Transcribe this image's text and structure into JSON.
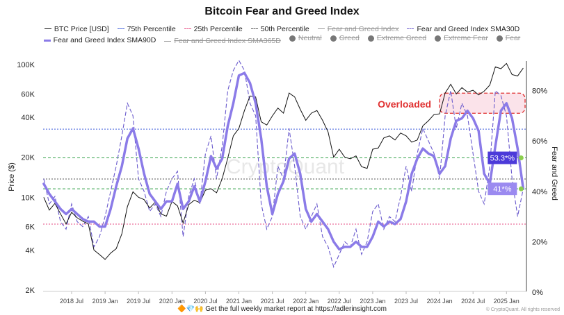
{
  "chart_data": {
    "type": "line",
    "title": "Bitcoin Fear and Greed Index",
    "ylabel_left": "Price ($)",
    "ylabel_right": "Fear and Greed",
    "y_left_scale": "log",
    "y_left_ticks": [
      "2K",
      "4K",
      "6K",
      "10K",
      "20K",
      "40K",
      "60K",
      "100K"
    ],
    "y_left_tick_values": [
      2000,
      4000,
      6000,
      10000,
      20000,
      40000,
      60000,
      100000
    ],
    "y_left_range": [
      2000,
      100000
    ],
    "y_right_ticks": [
      "0%",
      "20%",
      "40%",
      "60%",
      "80%"
    ],
    "y_right_tick_values": [
      0,
      20,
      40,
      60,
      80
    ],
    "y_right_range": [
      0,
      100
    ],
    "x_ticks": [
      "2018 Jul",
      "2019 Jan",
      "2019 Jul",
      "2020 Jan",
      "2020 Jul",
      "2021 Jan",
      "2021 Jul",
      "2022 Jan",
      "2022 Jul",
      "2023 Jan",
      "2023 Jul",
      "2024 Jan",
      "2024 Jul",
      "2025 Jan"
    ],
    "x_start": "2018-02",
    "x_end": "2025-04",
    "grid": false,
    "legend_placement": "top",
    "legend": [
      {
        "label": "BTC Price [USD]",
        "style": "solid",
        "color": "#111111",
        "enabled": true
      },
      {
        "label": "75th Percentile",
        "style": "dashed",
        "color": "#3b5bdb",
        "enabled": true
      },
      {
        "label": "25th Percentile",
        "style": "dashed",
        "color": "#e64980",
        "enabled": true
      },
      {
        "label": "50th Percentile",
        "style": "dashed",
        "color": "#555555",
        "enabled": true
      },
      {
        "label": "Fear and Greed Index",
        "style": "solid",
        "color": "#999999",
        "enabled": false
      },
      {
        "label": "Fear and Greed Index SMA30D",
        "style": "dashed",
        "color": "#6a5acd",
        "enabled": true
      },
      {
        "label": "Fear and Greed Index SMA90D",
        "style": "solid",
        "color": "#8b7be8",
        "enabled": true
      },
      {
        "label": "Fear and Greed Index SMA365D",
        "style": "solid",
        "color": "#999999",
        "enabled": false
      },
      {
        "label": "Neutral",
        "style": "dot",
        "enabled": false
      },
      {
        "label": "Greed",
        "style": "dot",
        "enabled": false
      },
      {
        "label": "Extreme Greed",
        "style": "dot",
        "enabled": false
      },
      {
        "label": "Extreme Fear",
        "style": "dot",
        "enabled": false
      },
      {
        "label": "Fear",
        "style": "dot",
        "enabled": false
      }
    ],
    "percentile_lines": {
      "p75": 64.7,
      "p50": 44.9,
      "p25": 27.0
    },
    "reference_lines": [
      53.3,
      41
    ],
    "value_labels": [
      {
        "text": "53.3*%",
        "value": 53.3,
        "color": "#4c3ad9"
      },
      {
        "text": "41*%",
        "value": 41,
        "color": "#9b8af0"
      }
    ],
    "annotation": {
      "text": "Overloaded",
      "color": "#e03131",
      "x_range": [
        "2024-01",
        "2025-04"
      ],
      "y_range": [
        71,
        79
      ]
    },
    "series": [
      {
        "name": "BTC Price [USD]",
        "axis": "left",
        "values": [
          10000,
          8000,
          9000,
          7500,
          6300,
          7700,
          7000,
          6600,
          6300,
          4000,
          3700,
          3400,
          3800,
          4100,
          5300,
          8500,
          11000,
          10000,
          9600,
          8300,
          9200,
          7500,
          7200,
          9300,
          8600,
          6400,
          8800,
          9500,
          9100,
          11300,
          11600,
          10800,
          13800,
          19700,
          29000,
          33000,
          45000,
          58000,
          57000,
          37000,
          35000,
          41000,
          47000,
          43000,
          61000,
          57000,
          46000,
          38000,
          43000,
          45000,
          38000,
          31000,
          20000,
          23000,
          20000,
          19500,
          20500,
          17000,
          16500,
          23000,
          23500,
          28000,
          29000,
          27000,
          30500,
          29000,
          26000,
          27000,
          34500,
          37700,
          42000,
          42500,
          61000,
          71000,
          60000,
          67000,
          62000,
          64000,
          59000,
          63000,
          70000,
          96000,
          93000,
          102000,
          84000,
          82000,
          94000
        ]
      },
      {
        "name": "Fear and Greed Index SMA30D",
        "axis": "right",
        "values": [
          45,
          35,
          38,
          28,
          25,
          35,
          28,
          26,
          30,
          18,
          22,
          30,
          40,
          50,
          62,
          75,
          70,
          45,
          40,
          32,
          35,
          30,
          40,
          45,
          48,
          22,
          38,
          45,
          35,
          55,
          62,
          45,
          58,
          80,
          88,
          92,
          88,
          75,
          70,
          35,
          25,
          30,
          50,
          45,
          65,
          50,
          30,
          25,
          30,
          35,
          22,
          18,
          10,
          15,
          20,
          18,
          25,
          15,
          20,
          32,
          35,
          25,
          30,
          28,
          38,
          50,
          40,
          55,
          65,
          60,
          55,
          45,
          70,
          80,
          65,
          75,
          70,
          55,
          40,
          35,
          50,
          80,
          78,
          70,
          45,
          30,
          41
        ]
      },
      {
        "name": "Fear and Greed Index SMA90D",
        "axis": "right",
        "values": [
          43,
          39,
          36,
          33,
          31,
          33,
          31,
          29,
          28,
          28,
          26,
          26,
          33,
          42,
          50,
          61,
          65,
          57,
          47,
          39,
          36,
          33,
          36,
          36,
          43,
          33,
          36,
          42,
          36,
          44,
          54,
          49,
          53,
          66,
          75,
          86,
          87,
          83,
          75,
          61,
          42,
          31,
          39,
          44,
          53,
          55,
          47,
          33,
          28,
          31,
          28,
          25,
          20,
          17,
          18,
          18,
          20,
          18,
          18,
          22,
          28,
          26,
          28,
          27,
          29,
          36,
          47,
          53,
          57,
          55,
          54,
          47,
          50,
          61,
          68,
          69,
          72,
          69,
          64,
          47,
          43,
          58,
          72,
          75,
          69,
          57,
          41
        ]
      }
    ]
  },
  "watermark": "CryptoQuant",
  "footer": {
    "icons": "🔶💎🙌",
    "text": "Get the full weekly market report at https://adlerinsight.com"
  },
  "copyright": "© CryptoQuant. All rights reserved"
}
